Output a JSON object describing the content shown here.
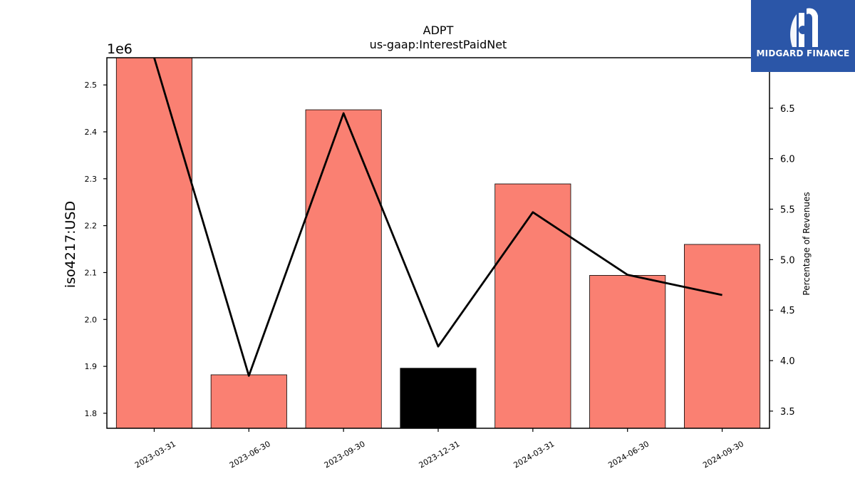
{
  "chart_data": {
    "type": "bar",
    "title": "ADPT",
    "subtitle": "us-gaap:InterestPaidNet",
    "ylabel": "iso4217:USD",
    "y2label": "Percentage of Revenues",
    "y_offset_label": "1e6",
    "categories": [
      "2023-03-31",
      "2023-06-30",
      "2023-09-30",
      "2023-12-31",
      "2024-03-31",
      "2024-06-30",
      "2024-09-30"
    ],
    "series": [
      {
        "values": [
          2560000,
          1882000,
          2447000,
          1896000,
          2289000,
          2094000,
          2160000
        ],
        "colors": [
          "#fa8072",
          "#fa8072",
          "#fa8072",
          "#000000",
          "#fa8072",
          "#fa8072",
          "#fa8072"
        ]
      },
      {
        "axis": "right",
        "values": [
          7.0,
          3.85,
          6.45,
          4.14,
          5.47,
          4.85,
          4.65
        ],
        "color": "#000000"
      }
    ],
    "ylim": [
      1768000,
      2558000
    ],
    "y2lim": [
      3.33,
      7.0
    ],
    "yticks": [
      "1.8",
      "1.9",
      "2.0",
      "2.1",
      "2.2",
      "2.3",
      "2.4",
      "2.5"
    ],
    "y2ticks": [
      "3.5",
      "4.0",
      "4.5",
      "5.0",
      "5.5",
      "6.0",
      "6.5"
    ],
    "grid": false
  },
  "logo": {
    "text": "MIDGARD FINANCE"
  }
}
